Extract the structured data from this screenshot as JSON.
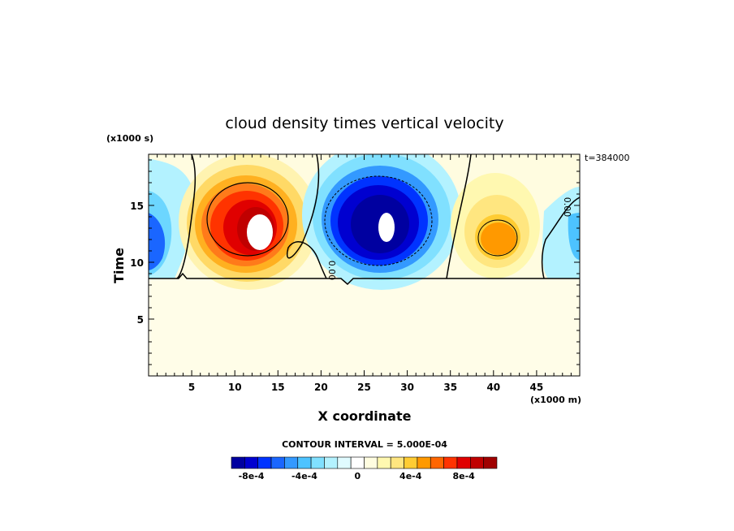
{
  "chart_data": {
    "type": "heatmap",
    "title": "cloud density times vertical velocity",
    "xlabel": "X coordinate",
    "ylabel": "Time",
    "x_units": "(x1000 m)",
    "y_units": "(x1000 s)",
    "time_label": "t=384000",
    "xlim": [
      0,
      50
    ],
    "ylim": [
      0,
      19.5
    ],
    "x_ticks": [
      5,
      10,
      15,
      20,
      25,
      30,
      35,
      40,
      45
    ],
    "y_ticks": [
      5,
      10,
      15
    ],
    "contour_interval_label": "CONTOUR INTERVAL = 5.000E-04",
    "contour_interval": 0.0005,
    "colorbar": {
      "levels": [
        "-8e-4",
        "-4e-4",
        "0",
        "4e-4",
        "8e-4"
      ],
      "colors": [
        "#0000a0",
        "#0000d0",
        "#0033ff",
        "#1a66ff",
        "#3399ff",
        "#4dc3ff",
        "#80e0ff",
        "#b3f2ff",
        "#e0fbff",
        "#ffffff",
        "#fffde0",
        "#fff8b0",
        "#ffe680",
        "#ffcc33",
        "#ff9900",
        "#ff6600",
        "#ff3300",
        "#e00000",
        "#c00000",
        "#a00000"
      ]
    },
    "features": [
      {
        "name": "positive cell",
        "x": 12.5,
        "y": 13,
        "peak": 0.0012
      },
      {
        "name": "negative cell",
        "x": 27,
        "y": 13.5,
        "peak": -0.0012
      },
      {
        "name": "weak positive cell",
        "x": 40,
        "y": 12,
        "peak": 0.0006
      },
      {
        "name": "weak negative cell",
        "x": 1.5,
        "y": 11.5,
        "peak": -0.0006
      }
    ],
    "contour_labels": [
      "0.00",
      "0.00"
    ],
    "baseline_time": 8.6
  }
}
